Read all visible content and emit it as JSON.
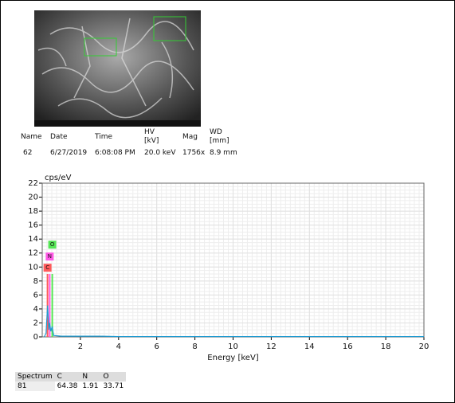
{
  "metadata": {
    "headers": [
      "Name",
      "Date",
      "Time",
      "HV\n[kV]",
      "Mag",
      "WD\n[mm]"
    ],
    "row": [
      "62",
      "6/27/2019",
      "6:08:08 PM",
      "20.0 keV",
      "1756x",
      "8.9 mm"
    ]
  },
  "chart_data": {
    "type": "line",
    "ylabel": "cps/eV",
    "xlabel": "Energy [keV]",
    "xlim": [
      0,
      20
    ],
    "xticks": [
      2,
      4,
      6,
      8,
      10,
      12,
      14,
      16,
      18,
      20
    ],
    "ylim": [
      0,
      22
    ],
    "yticks": [
      0,
      2,
      4,
      6,
      8,
      10,
      12,
      14,
      16,
      18,
      20,
      22
    ],
    "grid": true,
    "series": [
      {
        "color": "#1f9bd1",
        "x": [
          0.1,
          0.2,
          0.28,
          0.35,
          0.39,
          0.45,
          0.52,
          0.6,
          1,
          2,
          3,
          4,
          6,
          8,
          10,
          12,
          14,
          16,
          18,
          20
        ],
        "values": [
          0,
          0.5,
          4.5,
          1,
          2,
          0.8,
          1.5,
          0.2,
          0.1,
          0.1,
          0.1,
          0.05,
          0.05,
          0.05,
          0.05,
          0.05,
          0.05,
          0.05,
          0.05,
          0.05
        ]
      }
    ],
    "elements": [
      {
        "name": "C",
        "color": "#ff5a5a",
        "energy": 0.277,
        "line_height": 9,
        "label_y": 9.9
      },
      {
        "name": "N",
        "color": "#ff5ae6",
        "energy": 0.392,
        "line_height": 9,
        "label_y": 11.5
      },
      {
        "name": "O",
        "color": "#55e655",
        "energy": 0.525,
        "line_height": 9,
        "label_y": 13.2
      }
    ]
  },
  "results": {
    "headers": [
      "Spectrum",
      "C",
      "N",
      "O"
    ],
    "row": [
      "81",
      "64.38",
      "1.91",
      "33.71"
    ]
  }
}
